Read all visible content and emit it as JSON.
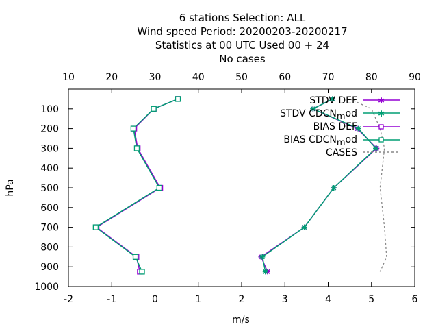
{
  "chart_data": {
    "type": "line",
    "title_lines": [
      "6 stations Selection: ALL",
      "Wind speed  Period: 20200203-20200217",
      "Statistics at 00 UTC  Used  00 + 24",
      "No cases"
    ],
    "xlabel": "m/s",
    "ylabel": "hPa",
    "xlim": [
      -2,
      6
    ],
    "x_ticks": [
      "-2",
      "-1",
      "0",
      "1",
      "2",
      "3",
      "4",
      "5",
      "6"
    ],
    "x2lim": [
      10,
      90
    ],
    "x2_ticks": [
      "10",
      "20",
      "30",
      "40",
      "50",
      "60",
      "70",
      "80",
      "90"
    ],
    "ylim": [
      1000,
      0
    ],
    "y_ticks": [
      "100",
      "200",
      "300",
      "400",
      "500",
      "600",
      "700",
      "800",
      "900",
      "1000"
    ],
    "y_reversed": true,
    "grid": false,
    "legend_position": "top-right",
    "levels": [
      50,
      100,
      200,
      300,
      500,
      700,
      850,
      925
    ],
    "series": [
      {
        "name": "STDV DEF",
        "color": "#9400d3",
        "marker": "star",
        "dash": false,
        "axis": "x",
        "values": [
          4.1,
          3.65,
          4.67,
          5.12,
          4.13,
          3.45,
          2.45,
          2.6
        ]
      },
      {
        "name": "STDV CDCN_mod",
        "color": "#009e73",
        "marker": "star",
        "dash": false,
        "axis": "x",
        "values": [
          4.1,
          3.65,
          4.7,
          5.1,
          4.13,
          3.45,
          2.48,
          2.55
        ]
      },
      {
        "name": "BIAS DEF",
        "color": "#9400d3",
        "marker": "square",
        "dash": false,
        "axis": "x",
        "values": [
          0.53,
          -0.03,
          -0.48,
          -0.4,
          0.12,
          -1.35,
          -0.43,
          -0.35
        ]
      },
      {
        "name": "BIAS CDCN_mod",
        "color": "#009e73",
        "marker": "square",
        "dash": false,
        "axis": "x",
        "values": [
          0.53,
          -0.03,
          -0.5,
          -0.42,
          0.1,
          -1.37,
          -0.45,
          -0.3
        ]
      },
      {
        "name": "CASES",
        "color": "#888888",
        "marker": "none",
        "dash": true,
        "axis": "x2",
        "values": [
          75,
          80,
          82,
          83,
          82,
          83,
          83.5,
          82
        ]
      }
    ]
  }
}
